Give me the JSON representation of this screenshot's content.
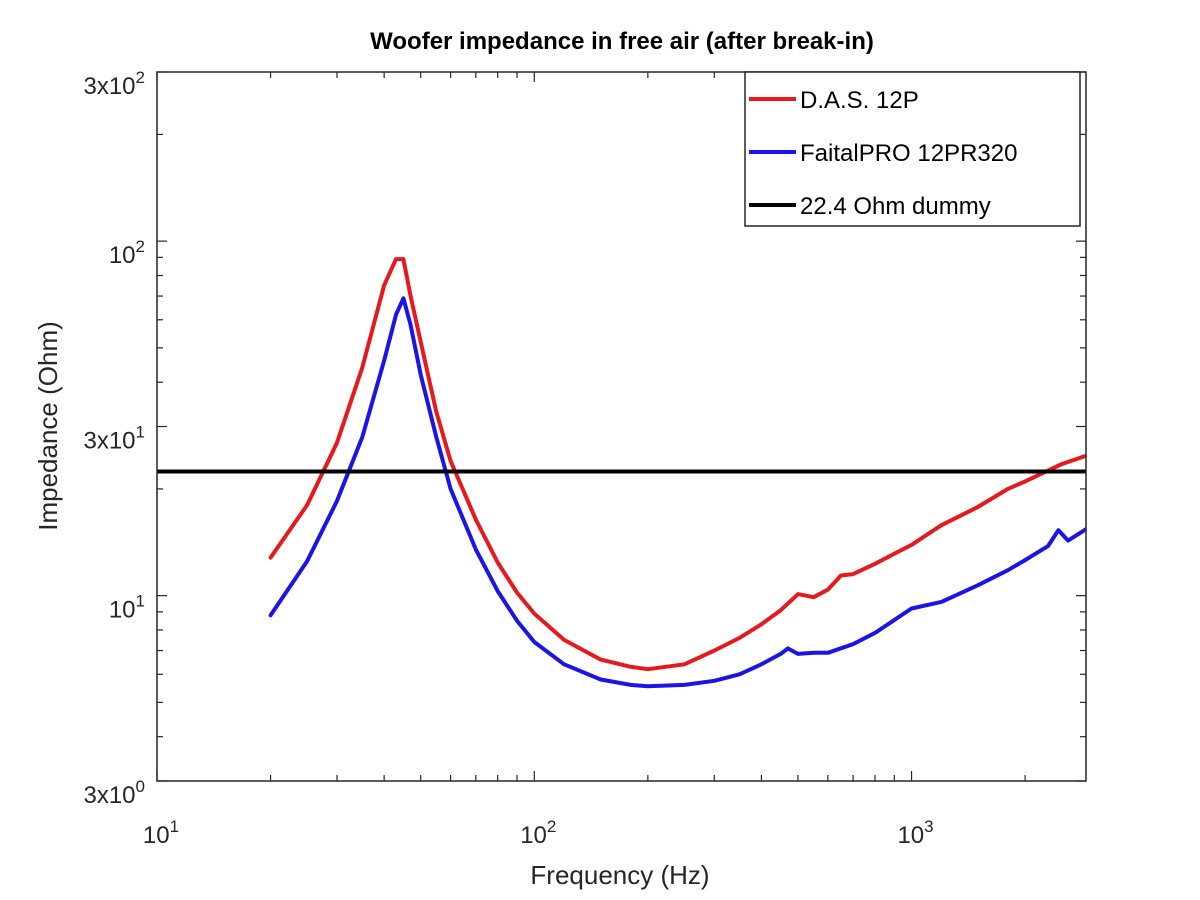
{
  "chart_data": {
    "type": "line",
    "title": "Woofer impedance in free air (after break-in)",
    "xlabel": "Frequency (Hz)",
    "ylabel": "Impedance (Ohm)",
    "xscale": "log",
    "yscale": "log",
    "xlim": [
      10,
      2900
    ],
    "ylim": [
      3,
      300
    ],
    "x_ticks": [
      {
        "value": 10,
        "base": "10",
        "exp": "1"
      },
      {
        "value": 100,
        "base": "10",
        "exp": "2"
      },
      {
        "value": 1000,
        "base": "10",
        "exp": "3"
      }
    ],
    "y_ticks": [
      {
        "value": 3,
        "base": "3x10",
        "exp": "0"
      },
      {
        "value": 10,
        "base": "10",
        "exp": "1"
      },
      {
        "value": 30,
        "base": "3x10",
        "exp": "1"
      },
      {
        "value": 100,
        "base": "10",
        "exp": "2"
      },
      {
        "value": 300,
        "base": "3x10",
        "exp": "2"
      }
    ],
    "grid": false,
    "legend_position": "top-right",
    "series": [
      {
        "name": "D.A.S. 12P",
        "color": "#e8191c",
        "x": [
          20,
          25,
          30,
          35,
          40,
          43,
          45,
          47,
          50,
          55,
          60,
          70,
          80,
          90,
          100,
          120,
          150,
          180,
          200,
          250,
          300,
          350,
          400,
          450,
          500,
          550,
          600,
          650,
          700,
          800,
          1000,
          1200,
          1500,
          1800,
          2000,
          2500,
          2900
        ],
        "y": [
          12.8,
          18,
          27,
          44,
          75,
          89,
          89,
          70,
          52,
          33,
          24,
          16.4,
          12.4,
          10.2,
          8.9,
          7.5,
          6.6,
          6.3,
          6.2,
          6.4,
          7,
          7.6,
          8.3,
          9.1,
          10.1,
          9.9,
          10.4,
          11.4,
          11.5,
          12.3,
          13.9,
          15.8,
          17.8,
          20,
          21,
          23.5,
          24.8
        ]
      },
      {
        "name": "FaitalPRO 12PR320",
        "color": "#1a14e8",
        "x": [
          20,
          25,
          30,
          35,
          40,
          43,
          45,
          47,
          50,
          55,
          60,
          70,
          80,
          90,
          100,
          120,
          150,
          180,
          200,
          250,
          300,
          350,
          400,
          450,
          470,
          500,
          550,
          600,
          700,
          800,
          1000,
          1200,
          1500,
          1800,
          2000,
          2300,
          2450,
          2600,
          2900
        ],
        "y": [
          8.8,
          12.5,
          18.5,
          28,
          46,
          62,
          69,
          58,
          42,
          28,
          20,
          13.5,
          10.3,
          8.5,
          7.4,
          6.4,
          5.8,
          5.6,
          5.55,
          5.6,
          5.75,
          6.0,
          6.4,
          6.85,
          7.1,
          6.85,
          6.9,
          6.9,
          7.3,
          7.85,
          9.2,
          9.6,
          10.7,
          11.8,
          12.6,
          13.8,
          15.3,
          14.3,
          15.4
        ]
      },
      {
        "name": "22.4 Ohm dummy",
        "color": "#000000",
        "x": [
          10,
          2900
        ],
        "y": [
          22.4,
          22.4
        ]
      }
    ]
  }
}
